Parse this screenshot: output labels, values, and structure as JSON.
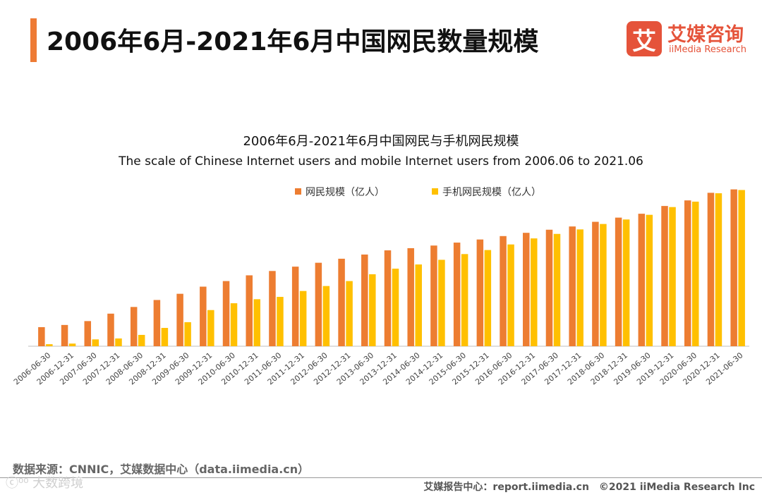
{
  "header": {
    "title": "2006年6月-2021年6月中国网民数量规模",
    "accent_color": "#EE7B35"
  },
  "logo": {
    "mark": "艾",
    "name_cn": "艾媒咨询",
    "name_en": "iiMedia Research",
    "color": "#E5533A"
  },
  "chart_data": {
    "type": "bar",
    "title": "2006年6月-2021年6月中国网民与手机网民规模",
    "subtitle": "The scale of Chinese Internet users and mobile Internet users from 2006.06 to 2021.06",
    "categories": [
      "2006-06-30",
      "2006-12-31",
      "2007-06-30",
      "2007-12-31",
      "2008-06-30",
      "2008-12-31",
      "2009-06-30",
      "2009-12-31",
      "2010-06-30",
      "2010-12-31",
      "2011-06-30",
      "2011-12-31",
      "2012-06-30",
      "2012-12-31",
      "2013-06-30",
      "2013-12-31",
      "2014-06-30",
      "2014-12-31",
      "2015-06-30",
      "2015-12-31",
      "2016-06-30",
      "2016-12-31",
      "2017-06-30",
      "2017-12-31",
      "2018-06-30",
      "2018-12-31",
      "2019-06-30",
      "2019-12-31",
      "2020-06-30",
      "2020-12-31",
      "2021-06-30"
    ],
    "series": [
      {
        "name": "网民规模（亿人）",
        "color": "#ED7D31",
        "values": [
          1.23,
          1.37,
          1.62,
          2.1,
          2.53,
          2.98,
          3.38,
          3.84,
          4.2,
          4.57,
          4.85,
          5.13,
          5.38,
          5.64,
          5.91,
          6.18,
          6.32,
          6.49,
          6.68,
          6.88,
          7.1,
          7.31,
          7.51,
          7.72,
          8.02,
          8.29,
          8.54,
          9.04,
          9.4,
          9.89,
          10.11
        ]
      },
      {
        "name": "手机网民规模（亿人）",
        "color": "#FFC000",
        "values": [
          0.13,
          0.17,
          0.44,
          0.5,
          0.73,
          1.18,
          1.55,
          2.33,
          2.77,
          3.03,
          3.18,
          3.56,
          3.88,
          4.2,
          4.64,
          5.0,
          5.27,
          5.57,
          5.94,
          6.2,
          6.56,
          6.95,
          7.24,
          7.53,
          7.88,
          8.17,
          8.47,
          8.97,
          9.32,
          9.86,
          10.07
        ]
      }
    ],
    "ylim": [
      0,
      10.5
    ],
    "grid": false,
    "legend_position": "top-center",
    "xlabel": "",
    "ylabel": ""
  },
  "footer": {
    "source": "数据来源：CNNIC，艾媒数据中心（data.iimedia.cn）",
    "watermark": "ⓒ⁰⁰ 大数跨境",
    "report_center": "艾媒报告中心：report.iimedia.cn",
    "copyright": "©2021 iiMedia Research Inc"
  }
}
